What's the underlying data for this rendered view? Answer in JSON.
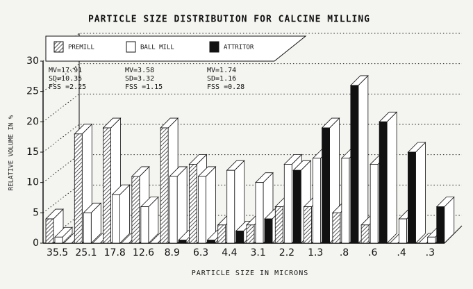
{
  "chart_data": {
    "type": "bar3d",
    "title": "PARTICLE SIZE DISTRIBUTION FOR CALCINE MILLING",
    "x_label": "PARTICLE SIZE IN MICRONS",
    "y_label": "RELATIVE VOLUME IN %",
    "categories": [
      "35.5",
      "25.1",
      "17.8",
      "12.6",
      "8.9",
      "6.3",
      "4.4",
      "3.1",
      "2.2",
      "1.3",
      ".8",
      ".6",
      ".4",
      ".3"
    ],
    "series": [
      {
        "name": "PREMILL",
        "color": "#777777",
        "values": [
          4,
          18,
          19,
          11,
          19,
          13,
          3,
          3,
          6,
          6,
          5,
          3,
          0,
          0
        ]
      },
      {
        "name": "BALL MILL",
        "color": "#ffffff",
        "values": [
          1,
          5,
          8,
          6,
          11,
          11,
          12,
          10,
          13,
          14,
          14,
          13,
          4,
          1
        ]
      },
      {
        "name": "ATTRITOR",
        "color": "#111111",
        "values": [
          0,
          0,
          0,
          0,
          0.5,
          0.5,
          2,
          4,
          12,
          19,
          26,
          20,
          15,
          6
        ]
      }
    ],
    "annotations": [
      [
        "MV=17.91",
        "SD=10.35",
        "FSS =2.25"
      ],
      [
        "MV=3.58",
        "SD=3.32",
        "FSS =1.15"
      ],
      [
        "MV=1.74",
        "SD=1.16",
        "FSS =0.28"
      ]
    ],
    "ylim": [
      0,
      30
    ],
    "yticks": [
      0,
      5,
      10,
      15,
      20,
      25,
      30
    ],
    "grid": true,
    "legend": "top"
  }
}
